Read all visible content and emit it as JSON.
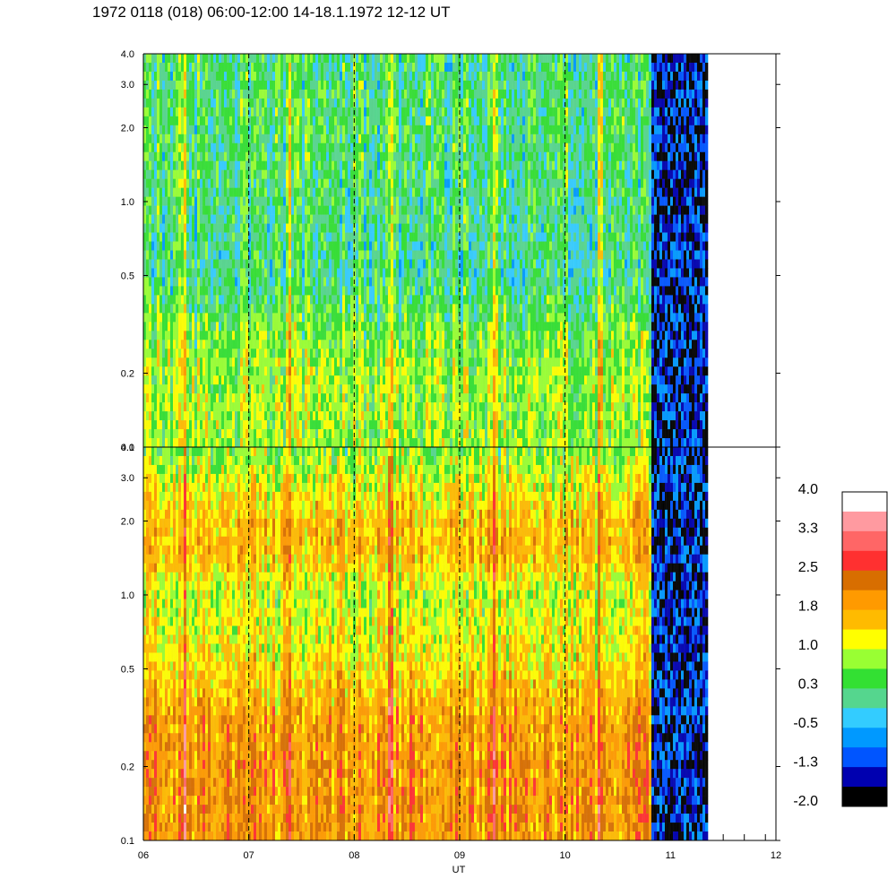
{
  "title": "1972 0118 (018) 06:00-12:00 14-18.1.1972  12-12 UT",
  "chart_data": {
    "type": "heatmap",
    "title": "1972 0118 (018) 06:00-12:00 14-18.1.1972  12-12 UT",
    "xlabel": "UT",
    "ylabel": "",
    "x_ticks": [
      "06",
      "07",
      "08",
      "09",
      "10",
      "11",
      "12"
    ],
    "xlim": [
      6,
      12
    ],
    "y_scale": "log",
    "ylim": [
      0.1,
      4.0
    ],
    "y_ticks": [
      "0.1",
      "0.2",
      "0.5",
      "1.0",
      "2.0",
      "3.0",
      "4.0"
    ],
    "y_tick_values": [
      0.1,
      0.2,
      0.5,
      1.0,
      2.0,
      3.0,
      4.0
    ],
    "data_end_ut": 11.35,
    "cadence_change_ut": 10.8,
    "hour_markers": [
      7,
      8,
      9,
      10
    ],
    "panels": [
      {
        "name": "",
        "y_ticks": [
          "0.1",
          "0.2",
          "0.5",
          "1.0",
          "2.0",
          "3.0",
          "4.0"
        ],
        "profile": [
          {
            "y": 0.1,
            "level": 0.8
          },
          {
            "y": 0.2,
            "level": 0.8
          },
          {
            "y": 0.3,
            "level": 0.6
          },
          {
            "y": 0.5,
            "level": 0.1
          },
          {
            "y": 1.0,
            "level": 0.2
          },
          {
            "y": 2.0,
            "level": 0.3
          },
          {
            "y": 4.0,
            "level": 0.2
          }
        ],
        "late_level": -1.4
      },
      {
        "name": "",
        "y_ticks": [
          "0.1",
          "0.2",
          "0.5",
          "1.0",
          "2.0",
          "3.0",
          "4.0"
        ],
        "profile": [
          {
            "y": 0.1,
            "level": 2.0
          },
          {
            "y": 0.2,
            "level": 2.0
          },
          {
            "y": 0.3,
            "level": 1.9
          },
          {
            "y": 0.5,
            "level": 1.4
          },
          {
            "y": 1.0,
            "level": 1.0
          },
          {
            "y": 1.5,
            "level": 1.7
          },
          {
            "y": 2.0,
            "level": 1.6
          },
          {
            "y": 3.0,
            "level": 1.1
          },
          {
            "y": 4.0,
            "level": 0.6
          }
        ],
        "late_level": -1.4
      }
    ],
    "bursts_ut": [
      6.38,
      7.38,
      8.33,
      9.32,
      10.32
    ],
    "colorbar": {
      "labels": [
        "4.0",
        "3.3",
        "2.5",
        "1.8",
        "1.0",
        "0.3",
        "-0.5",
        "-1.3",
        "-2.0"
      ],
      "min": -2.0,
      "max": 4.0,
      "colors": [
        "#ffffff",
        "#ff9aa0",
        "#ff6666",
        "#ff3030",
        "#d86e00",
        "#ff9a00",
        "#ffbb00",
        "#ffff00",
        "#99ff33",
        "#33e033",
        "#55d68e",
        "#33ccff",
        "#0099ff",
        "#0055ff",
        "#0000b0",
        "#000000"
      ]
    }
  }
}
